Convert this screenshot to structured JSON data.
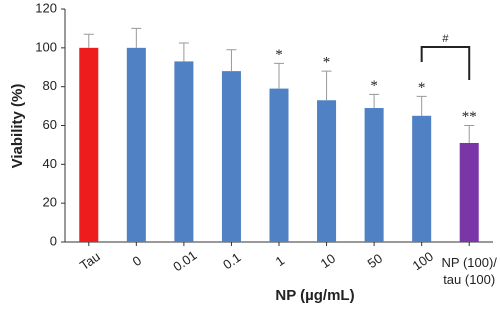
{
  "chart_data": {
    "type": "bar",
    "y_label": "Viability (%)",
    "x_label": "NP (µg/mL)",
    "categories": [
      "Tau",
      "0",
      "0.01",
      "0.1",
      "1",
      "10",
      "50",
      "100",
      "NP (100)/\ntau (100)"
    ],
    "values": [
      100,
      100,
      93,
      88,
      79,
      73,
      69,
      65,
      51
    ],
    "errors": [
      7,
      10,
      9.5,
      11,
      13,
      15,
      7,
      10,
      9
    ],
    "colors": [
      "#ee1c1c",
      "#4f81c4",
      "#4f81c4",
      "#4f81c4",
      "#4f81c4",
      "#4f81c4",
      "#4f81c4",
      "#4f81c4",
      "#7a35a6"
    ],
    "significance": [
      null,
      null,
      null,
      null,
      "*",
      "*",
      "*",
      "*",
      "**"
    ],
    "bracket_label": "#",
    "ylim": [
      0,
      120
    ],
    "yticks": [
      0,
      20,
      40,
      60,
      80,
      100,
      120
    ]
  }
}
